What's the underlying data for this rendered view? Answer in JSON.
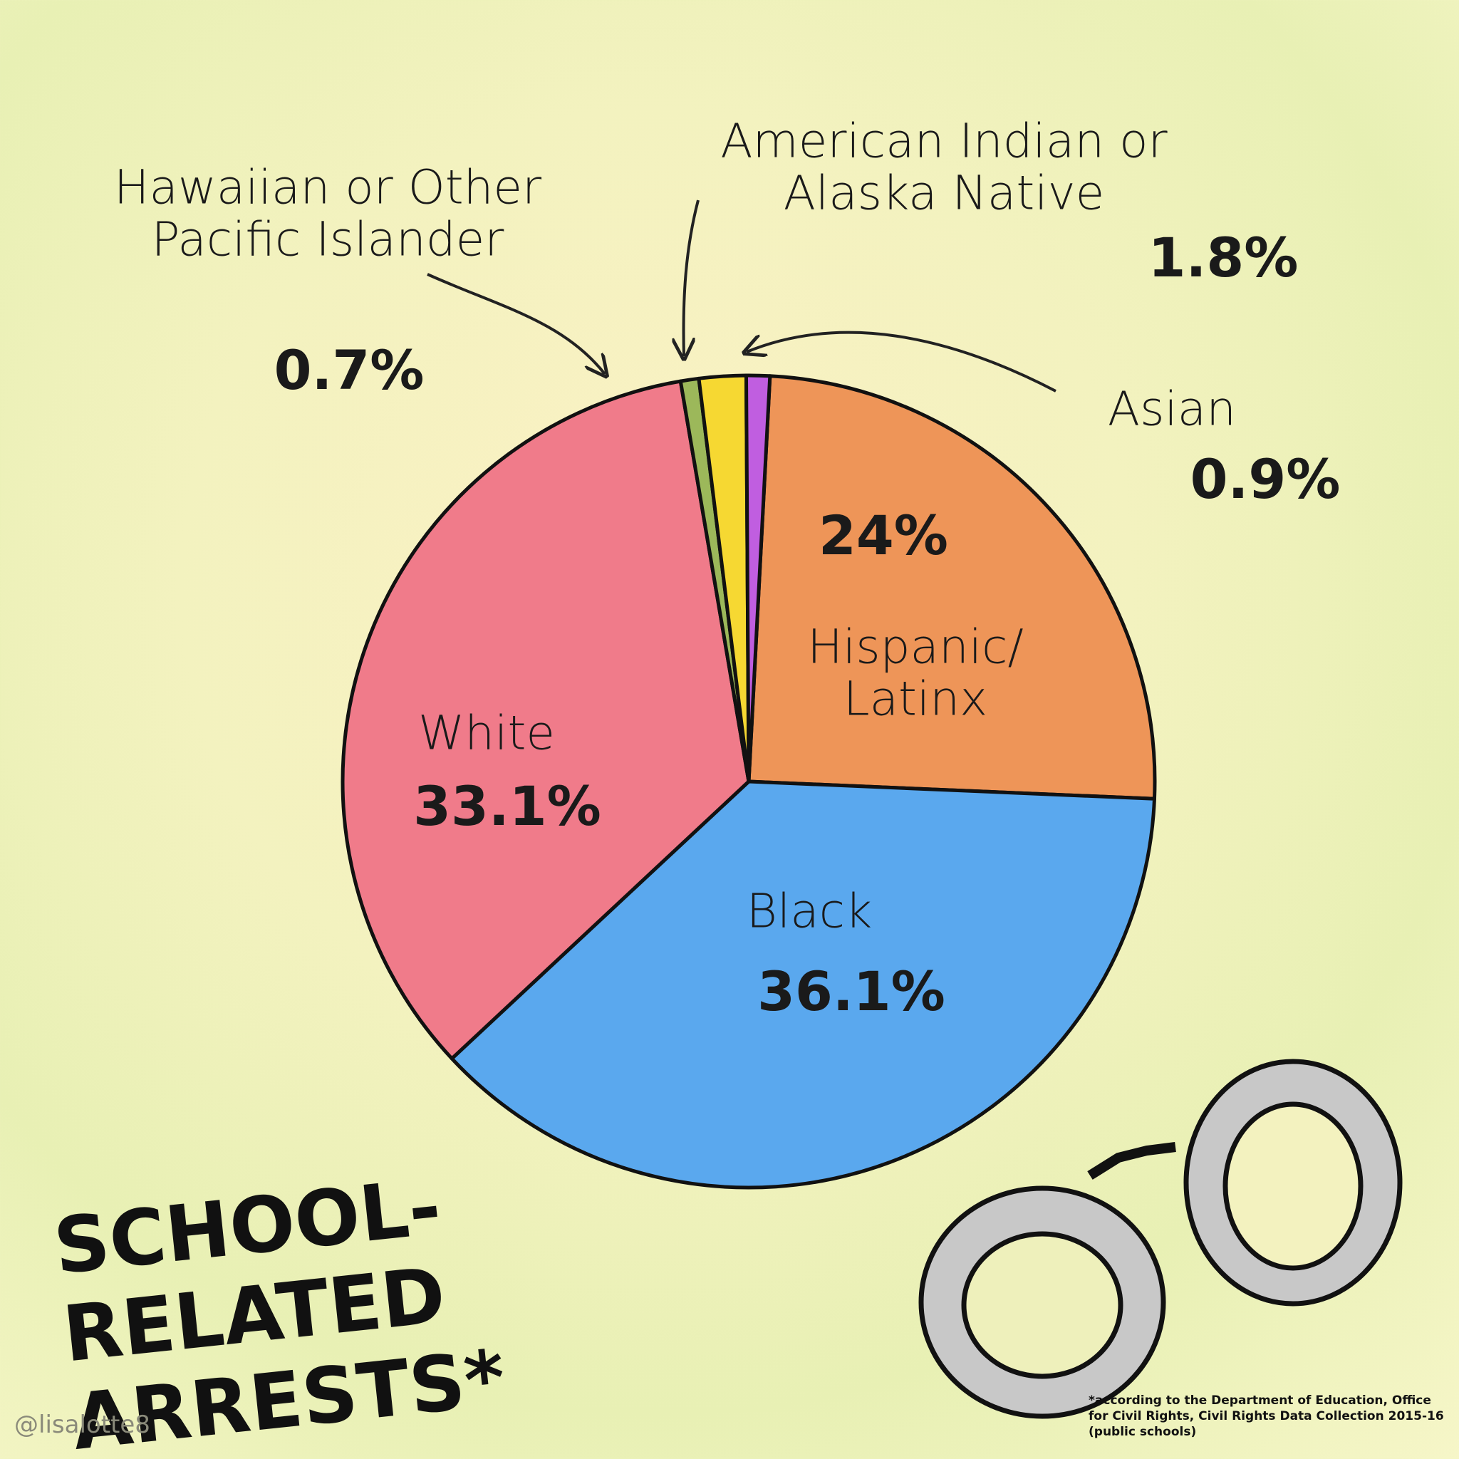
{
  "chart_data": {
    "type": "pie",
    "title": "SCHOOL-RELATED ARRESTS*",
    "categories": [
      "Hispanic/ Latinx",
      "Black",
      "White",
      "Hawaiian or Other Pacific Islander",
      "American Indian or Alaska Native",
      "Asian"
    ],
    "values": [
      24,
      36.1,
      33.1,
      0.7,
      1.8,
      0.9
    ],
    "value_labels": [
      "24%",
      "36.1%",
      "33.1%",
      "0.7%",
      "1.8%",
      "0.9%"
    ],
    "colors": [
      "#ee9558",
      "#5aa8ee",
      "#f07b8a",
      "#9cb85a",
      "#f6d832",
      "#c05ee0"
    ]
  },
  "footnote": "*according to the Department of Education, Office for Civil Rights, Civil Rights Data Collection 2015-16 (public schools)",
  "credit": "@lisalotte8"
}
